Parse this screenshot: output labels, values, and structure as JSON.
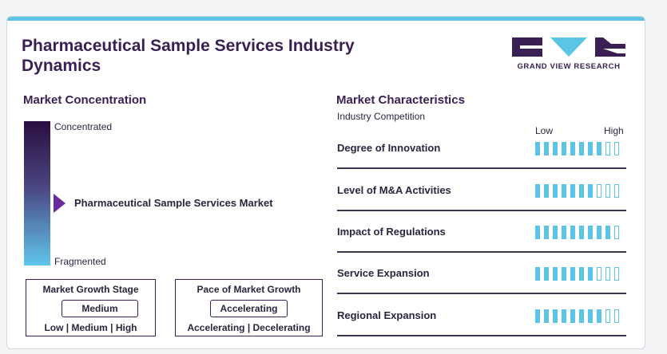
{
  "header": {
    "title": "Pharmaceutical Sample Services Industry Dynamics",
    "logo_text": "GRAND VIEW RESEARCH"
  },
  "market_concentration": {
    "title": "Market Concentration",
    "top_label": "Concentrated",
    "bottom_label": "Fragmented",
    "market_label": "Pharmaceutical Sample Services Market"
  },
  "growth_stage": {
    "title": "Market Growth Stage",
    "value": "Medium",
    "scale": "Low | Medium | High"
  },
  "growth_pace": {
    "title": "Pace of Market Growth",
    "value": "Accelerating",
    "scale": "Accelerating | Decelerating"
  },
  "characteristics": {
    "title": "Market Characteristics",
    "subtitle": "Industry Competition",
    "low_label": "Low",
    "high_label": "High",
    "max_level": 10,
    "rows": [
      {
        "label": "Degree of Innovation",
        "level": 8
      },
      {
        "label": "Level of M&A Activities",
        "level": 7
      },
      {
        "label": "Impact of Regulations",
        "level": 9
      },
      {
        "label": "Service Expansion",
        "level": 7
      },
      {
        "label": "Regional Expansion",
        "level": 8
      }
    ]
  },
  "colors": {
    "brand_dark": "#3a1f54",
    "accent": "#5cc5e6",
    "pointer": "#6a2c9a"
  }
}
